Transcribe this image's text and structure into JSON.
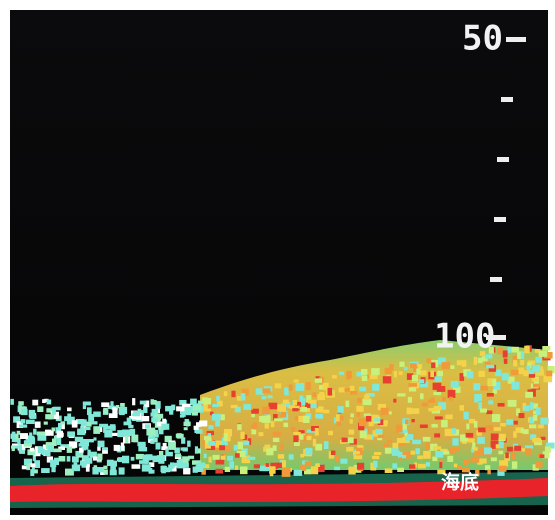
{
  "scale": {
    "labels": [
      "50",
      "100"
    ]
  },
  "seabed_label": "海底"
}
